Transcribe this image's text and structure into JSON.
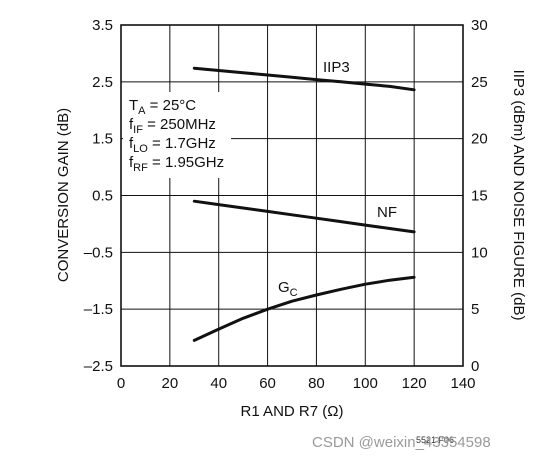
{
  "chart_data": {
    "type": "line",
    "x": [
      30,
      40,
      50,
      60,
      70,
      80,
      90,
      100,
      110,
      120
    ],
    "xlabel": "R1 AND R7 (Ω)",
    "xlim": [
      0,
      140
    ],
    "xticks": [
      "0",
      "20",
      "40",
      "60",
      "80",
      "100",
      "120",
      "140"
    ],
    "ylabel_left": "CONVERSION GAIN (dB)",
    "ylim_left": [
      -2.5,
      3.5
    ],
    "yticks_left": [
      "–2.5",
      "–1.5",
      "–0.5",
      "0.5",
      "1.5",
      "2.5",
      "3.5"
    ],
    "ylabel_right": "IIP3 (dBm) AND NOISE FIGURE (dB)",
    "ylim_right": [
      0,
      30
    ],
    "yticks_right": [
      "0",
      "5",
      "10",
      "15",
      "20",
      "25",
      "30"
    ],
    "grid": true,
    "series": [
      {
        "name": "IIP3",
        "axis": "right",
        "values": [
          26.2,
          26.0,
          25.8,
          25.6,
          25.4,
          25.2,
          25.0,
          24.8,
          24.6,
          24.3
        ]
      },
      {
        "name": "NF",
        "axis": "right",
        "values": [
          14.5,
          14.2,
          13.9,
          13.6,
          13.3,
          13.0,
          12.7,
          12.4,
          12.1,
          11.8
        ]
      },
      {
        "name": "G",
        "sub": "C",
        "axis": "left",
        "values": [
          -2.05,
          -1.85,
          -1.66,
          -1.5,
          -1.36,
          -1.25,
          -1.15,
          -1.06,
          -0.99,
          -0.94
        ]
      }
    ],
    "conditions": [
      {
        "main": "T",
        "sub": "A",
        "rest": " = 25°C"
      },
      {
        "main": "f",
        "sub": "IF",
        "rest": " = 250MHz"
      },
      {
        "main": "f",
        "sub": "LO",
        "rest": " = 1.7GHz"
      },
      {
        "main": "f",
        "sub": "RF",
        "rest": " = 1.95GHz"
      }
    ],
    "figure_code": "5521 F06"
  },
  "watermark": "CSDN @weixin_43354598"
}
